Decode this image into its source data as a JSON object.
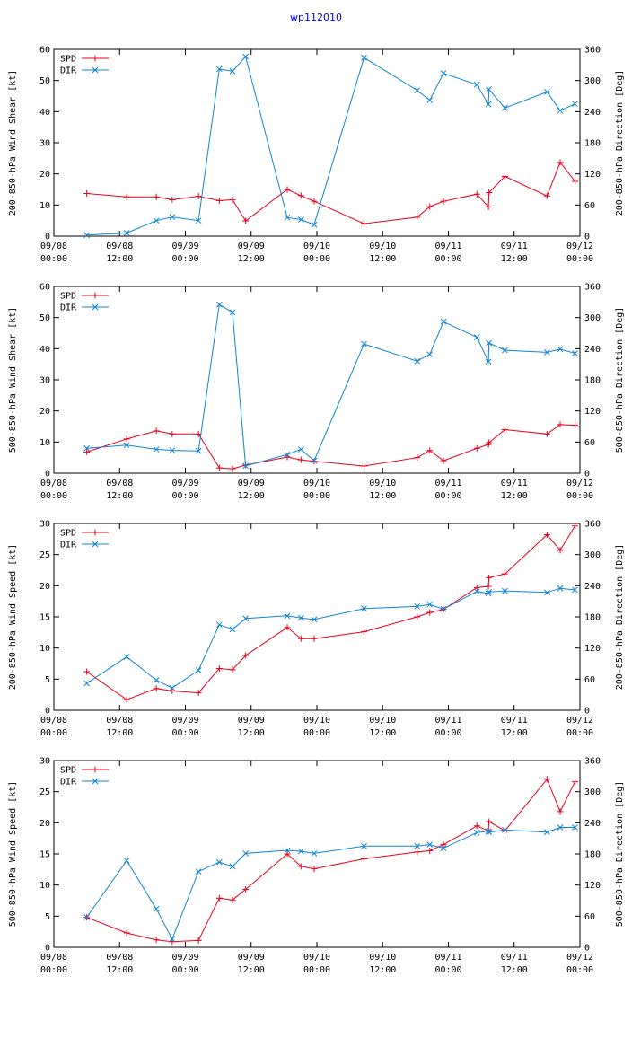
{
  "title": "wp112010",
  "colors": {
    "spd": "#e8001c",
    "dir": "#0f84d4",
    "title": "#0000ff"
  },
  "chart_data": [
    {
      "type": "line",
      "ylabel": "200-850-hPa Wind Shear [kt]",
      "y2label": "200-850-hPa Direction [Deg]",
      "ylim": [
        0,
        60
      ],
      "yticks": [
        0,
        10,
        20,
        30,
        40,
        50,
        60
      ],
      "y2lim": [
        0,
        360
      ],
      "y2ticks": [
        0,
        60,
        120,
        180,
        240,
        300,
        360
      ],
      "xlim": [
        0,
        96
      ],
      "xticks": [
        {
          "t": 0,
          "date": "09/08",
          "time": "00:00"
        },
        {
          "t": 12,
          "date": "09/08",
          "time": "12:00"
        },
        {
          "t": 24,
          "date": "09/09",
          "time": "00:00"
        },
        {
          "t": 36,
          "date": "09/09",
          "time": "12:00"
        },
        {
          "t": 48,
          "date": "09/10",
          "time": "00:00"
        },
        {
          "t": 60,
          "date": "09/10",
          "time": "12:00"
        },
        {
          "t": 72,
          "date": "09/11",
          "time": "00:00"
        },
        {
          "t": 84,
          "date": "09/11",
          "time": "12:00"
        },
        {
          "t": 96,
          "date": "09/12",
          "time": "00:00"
        }
      ],
      "legend": [
        "SPD",
        "DIR"
      ],
      "series": [
        {
          "name": "SPD",
          "axis": "left",
          "x": [
            6,
            13.3,
            18.7,
            21.6,
            26.4,
            30.2,
            32.6,
            35,
            42.6,
            45.1,
            47.5,
            56.6,
            66.3,
            68.6,
            71.1,
            77.2,
            79.3,
            79.4,
            82.3,
            90,
            92.4,
            95.1
          ],
          "y": [
            13.7,
            12.6,
            12.6,
            11.7,
            12.8,
            11.4,
            11.7,
            4.9,
            15,
            13,
            11.2,
            4,
            6.1,
            9.5,
            11.2,
            13.5,
            9.4,
            14,
            19.2,
            12.9,
            23.7,
            17.6
          ]
        },
        {
          "name": "DIR",
          "axis": "right",
          "x": [
            6,
            13.3,
            18.7,
            21.6,
            26.4,
            30.2,
            32.6,
            35,
            42.6,
            45.1,
            47.5,
            56.6,
            66.3,
            68.6,
            71.1,
            77.2,
            79.3,
            79.4,
            82.3,
            90,
            92.4,
            95.1
          ],
          "y": [
            2,
            6,
            30,
            37,
            30,
            322,
            318,
            346,
            36,
            32,
            22,
            344,
            281,
            262,
            314,
            292,
            254,
            283,
            247,
            278,
            242,
            255
          ]
        }
      ]
    },
    {
      "type": "line",
      "ylabel": "500-850-hPa Wind Shear [kt]",
      "y2label": "500-850-hPa Direction [Deg]",
      "ylim": [
        0,
        60
      ],
      "yticks": [
        0,
        10,
        20,
        30,
        40,
        50,
        60
      ],
      "y2lim": [
        0,
        360
      ],
      "y2ticks": [
        0,
        60,
        120,
        180,
        240,
        300,
        360
      ],
      "xlim": [
        0,
        96
      ],
      "xticks": [
        {
          "t": 0,
          "date": "09/08",
          "time": "00:00"
        },
        {
          "t": 12,
          "date": "09/08",
          "time": "12:00"
        },
        {
          "t": 24,
          "date": "09/09",
          "time": "00:00"
        },
        {
          "t": 36,
          "date": "09/09",
          "time": "12:00"
        },
        {
          "t": 48,
          "date": "09/10",
          "time": "00:00"
        },
        {
          "t": 60,
          "date": "09/10",
          "time": "12:00"
        },
        {
          "t": 72,
          "date": "09/11",
          "time": "00:00"
        },
        {
          "t": 84,
          "date": "09/11",
          "time": "12:00"
        },
        {
          "t": 96,
          "date": "09/12",
          "time": "00:00"
        }
      ],
      "legend": [
        "SPD",
        "DIR"
      ],
      "series": [
        {
          "name": "SPD",
          "axis": "left",
          "x": [
            6,
            13.3,
            18.7,
            21.6,
            26.4,
            30.2,
            32.6,
            35,
            42.6,
            45.1,
            47.5,
            56.6,
            66.3,
            68.6,
            71.1,
            77.2,
            79.3,
            79.4,
            82.3,
            90,
            92.4,
            95.1
          ],
          "y": [
            6.8,
            11,
            13.6,
            12.6,
            12.6,
            1.7,
            1.4,
            2.6,
            5.2,
            4.3,
            3.8,
            2.3,
            5,
            7.3,
            4,
            8,
            9.2,
            9.8,
            14,
            12.6,
            15.6,
            15.4
          ]
        },
        {
          "name": "DIR",
          "axis": "right",
          "x": [
            6,
            13.3,
            18.7,
            21.6,
            26.4,
            30.2,
            32.6,
            35,
            42.6,
            45.1,
            47.5,
            56.6,
            66.3,
            68.6,
            71.1,
            77.2,
            79.3,
            79.4,
            82.3,
            90,
            92.4,
            95.1
          ],
          "y": [
            48,
            54,
            46,
            44,
            43,
            325,
            310,
            14,
            36,
            46,
            24,
            249,
            216,
            229,
            292,
            262,
            215,
            251,
            237,
            233,
            239,
            231
          ]
        }
      ]
    },
    {
      "type": "line",
      "ylabel": "200-850-hPa Wind Speed [kt]",
      "y2label": "200-850-hPa Direction [Deg]",
      "ylim": [
        0,
        30
      ],
      "yticks": [
        0,
        5,
        10,
        15,
        20,
        25,
        30
      ],
      "y2lim": [
        0,
        360
      ],
      "y2ticks": [
        0,
        60,
        120,
        180,
        240,
        300,
        360
      ],
      "xlim": [
        0,
        96
      ],
      "xticks": [
        {
          "t": 0,
          "date": "09/08",
          "time": "00:00"
        },
        {
          "t": 12,
          "date": "09/08",
          "time": "12:00"
        },
        {
          "t": 24,
          "date": "09/09",
          "time": "00:00"
        },
        {
          "t": 36,
          "date": "09/09",
          "time": "12:00"
        },
        {
          "t": 48,
          "date": "09/10",
          "time": "00:00"
        },
        {
          "t": 60,
          "date": "09/10",
          "time": "12:00"
        },
        {
          "t": 72,
          "date": "09/11",
          "time": "00:00"
        },
        {
          "t": 84,
          "date": "09/11",
          "time": "12:00"
        },
        {
          "t": 96,
          "date": "09/12",
          "time": "00:00"
        }
      ],
      "legend": [
        "SPD",
        "DIR"
      ],
      "series": [
        {
          "name": "SPD",
          "axis": "left",
          "x": [
            6,
            13.3,
            18.7,
            21.6,
            26.4,
            30.2,
            32.6,
            35,
            42.6,
            45.1,
            47.5,
            56.6,
            66.3,
            68.6,
            71.1,
            77.2,
            79.3,
            79.4,
            82.3,
            90,
            92.4,
            95.1
          ],
          "y": [
            6.2,
            1.7,
            3.5,
            3.1,
            2.8,
            6.7,
            6.5,
            8.8,
            13.3,
            11.5,
            11.5,
            12.6,
            15,
            15.7,
            16.2,
            19.7,
            19.9,
            21.3,
            21.9,
            28.2,
            25.7,
            29.6
          ]
        },
        {
          "name": "DIR",
          "axis": "right",
          "x": [
            6,
            13.3,
            18.7,
            21.6,
            26.4,
            30.2,
            32.6,
            35,
            42.6,
            45.1,
            47.5,
            56.6,
            66.3,
            68.6,
            71.1,
            77.2,
            79.3,
            79.4,
            82.3,
            90,
            92.4,
            95.1
          ],
          "y": [
            52,
            103,
            58,
            43,
            77,
            165,
            156,
            177,
            182,
            178,
            175,
            196,
            200,
            204,
            195,
            229,
            225,
            228,
            230,
            227,
            235,
            232
          ]
        }
      ]
    },
    {
      "type": "line",
      "ylabel": "500-850-hPa Wind Speed [kt]",
      "y2label": "500-850-hPa Direction [Deg]",
      "ylim": [
        0,
        30
      ],
      "yticks": [
        0,
        5,
        10,
        15,
        20,
        25,
        30
      ],
      "y2lim": [
        0,
        360
      ],
      "y2ticks": [
        0,
        60,
        120,
        180,
        240,
        300,
        360
      ],
      "xlim": [
        0,
        96
      ],
      "xticks": [
        {
          "t": 0,
          "date": "09/08",
          "time": "00:00"
        },
        {
          "t": 12,
          "date": "09/08",
          "time": "12:00"
        },
        {
          "t": 24,
          "date": "09/09",
          "time": "00:00"
        },
        {
          "t": 36,
          "date": "09/09",
          "time": "12:00"
        },
        {
          "t": 48,
          "date": "09/10",
          "time": "00:00"
        },
        {
          "t": 60,
          "date": "09/10",
          "time": "12:00"
        },
        {
          "t": 72,
          "date": "09/11",
          "time": "00:00"
        },
        {
          "t": 84,
          "date": "09/11",
          "time": "12:00"
        },
        {
          "t": 96,
          "date": "09/12",
          "time": "00:00"
        }
      ],
      "legend": [
        "SPD",
        "DIR"
      ],
      "series": [
        {
          "name": "SPD",
          "axis": "left",
          "x": [
            6,
            13.3,
            18.7,
            21.6,
            26.4,
            30.2,
            32.6,
            35,
            42.6,
            45.1,
            47.5,
            56.6,
            66.3,
            68.6,
            71.1,
            77.2,
            79.3,
            79.4,
            82.3,
            90,
            92.4,
            95.1
          ],
          "y": [
            4.8,
            2.3,
            1.2,
            0.9,
            1.1,
            7.9,
            7.6,
            9.3,
            15,
            13,
            12.6,
            14.2,
            15.3,
            15.5,
            16.5,
            19.5,
            18.7,
            20.2,
            18.7,
            27,
            21.8,
            26.6
          ]
        },
        {
          "name": "DIR",
          "axis": "right",
          "x": [
            6,
            13.3,
            18.7,
            21.6,
            26.4,
            30.2,
            32.6,
            35,
            42.6,
            45.1,
            47.5,
            56.6,
            66.3,
            68.6,
            71.1,
            77.2,
            79.3,
            79.4,
            82.3,
            90,
            92.4,
            95.1
          ],
          "y": [
            58,
            167,
            74,
            16,
            146,
            164,
            156,
            181,
            187,
            185,
            181,
            195,
            195,
            198,
            191,
            221,
            224,
            222,
            226,
            222,
            231,
            231
          ]
        }
      ]
    }
  ]
}
